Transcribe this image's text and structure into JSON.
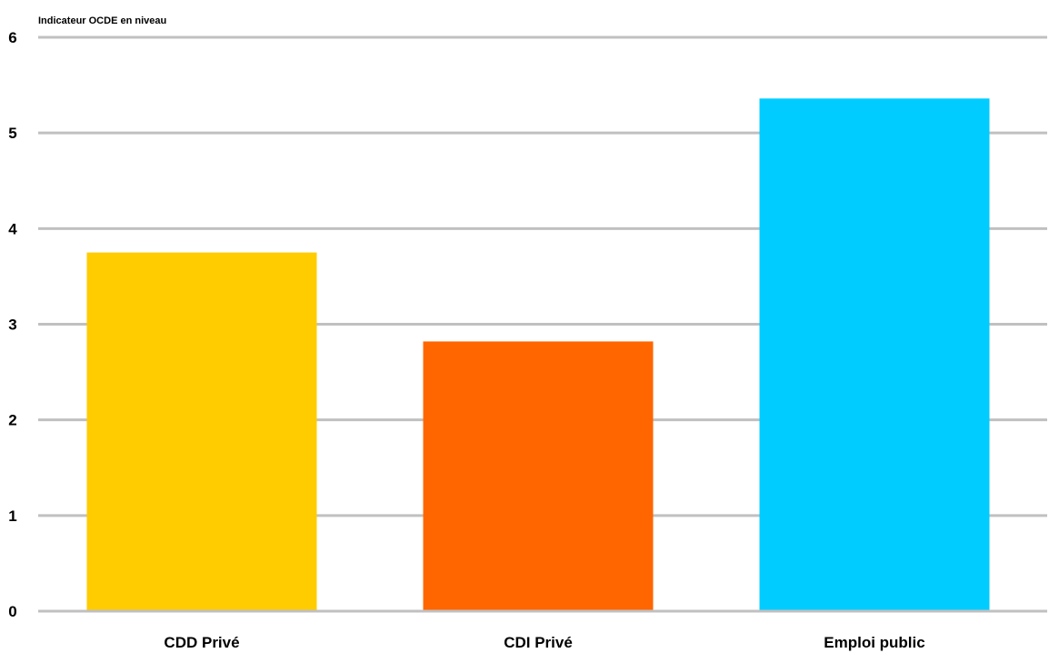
{
  "chart_data": {
    "type": "bar",
    "ylabel": "Indicateur OCDE en niveau",
    "xlabel": "",
    "categories": [
      "CDD Privé",
      "CDI Privé",
      "Emploi public"
    ],
    "values": [
      3.75,
      2.82,
      5.36
    ],
    "colors": [
      "#ffcc00",
      "#ff6600",
      "#00ccff"
    ],
    "ylim": [
      0,
      6
    ],
    "yticks": [
      "0",
      "1",
      "2",
      "3",
      "4",
      "5",
      "6"
    ],
    "grid": true,
    "gridColor": "#c0c0c0"
  }
}
